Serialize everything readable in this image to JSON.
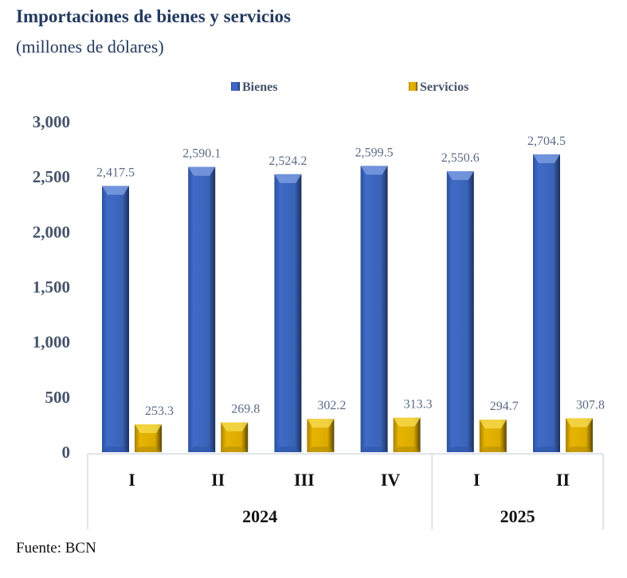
{
  "title": "Importaciones de bienes y servicios",
  "subtitle": "(millones de dólares)",
  "source": "Fuente: BCN",
  "chart_data": {
    "type": "bar",
    "title": "Importaciones de bienes y servicios",
    "ylabel": "millones de dólares",
    "ylim": [
      0,
      3000
    ],
    "yticks": [
      "0",
      "500",
      "1,000",
      "1,500",
      "2,000",
      "2,500",
      "3,000"
    ],
    "ytick_values": [
      0,
      500,
      1000,
      1500,
      2000,
      2500,
      3000
    ],
    "categories": [
      "I",
      "II",
      "III",
      "IV",
      "I",
      "II"
    ],
    "groups": [
      {
        "label": "2024",
        "count": 4
      },
      {
        "label": "2025",
        "count": 2
      }
    ],
    "legend_position": "top",
    "series": [
      {
        "name": "Bienes",
        "color": "#3a62b8",
        "values": [
          2417.5,
          2590.1,
          2524.2,
          2599.5,
          2550.6,
          2704.5
        ],
        "labels": [
          "2,417.5",
          "2,590.1",
          "2,524.2",
          "2,599.5",
          "2,550.6",
          "2,704.5"
        ]
      },
      {
        "name": "Servicios",
        "color": "#d9a800",
        "values": [
          253.3,
          269.8,
          302.2,
          313.3,
          294.7,
          307.8
        ],
        "labels": [
          "253.3",
          "269.8",
          "302.2",
          "313.3",
          "294.7",
          "307.8"
        ]
      }
    ]
  }
}
